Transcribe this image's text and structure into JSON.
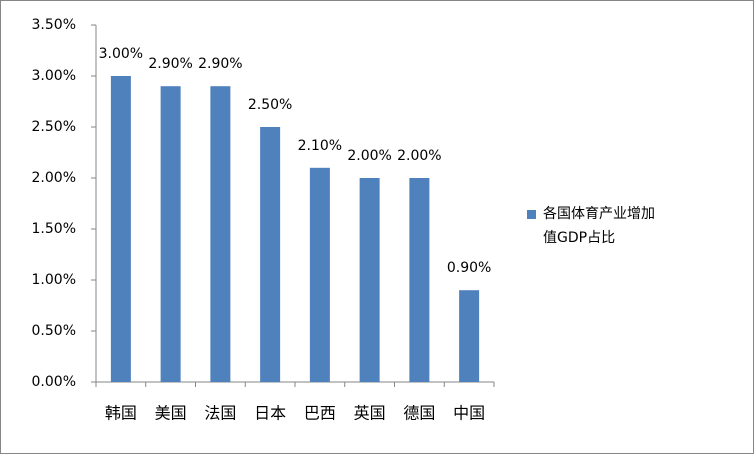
{
  "chart_data": {
    "type": "bar",
    "categories": [
      "韩国",
      "美国",
      "法国",
      "日本",
      "巴西",
      "英国",
      "德国",
      "中国"
    ],
    "series": [
      {
        "name": "各国体育产业增加值GDP占比",
        "color": "#4f81bd",
        "values": [
          3.0,
          2.9,
          2.9,
          2.5,
          2.1,
          2.0,
          2.0,
          0.9
        ],
        "value_labels": [
          "3.00%",
          "2.90%",
          "2.90%",
          "2.50%",
          "2.10%",
          "2.00%",
          "2.00%",
          "0.90%"
        ]
      }
    ],
    "ylim": [
      0,
      3.5
    ],
    "yticks": [
      {
        "value": 0,
        "label": "0.00%"
      },
      {
        "value": 0.5,
        "label": "0.50%"
      },
      {
        "value": 1,
        "label": "1.00%"
      },
      {
        "value": 1.5,
        "label": "1.50%"
      },
      {
        "value": 2,
        "label": "2.00%"
      },
      {
        "value": 2.5,
        "label": "2.50%"
      },
      {
        "value": 3,
        "label": "3.00%"
      },
      {
        "value": 3.5,
        "label": "3.50%"
      }
    ],
    "grid": false,
    "legend": "right"
  }
}
